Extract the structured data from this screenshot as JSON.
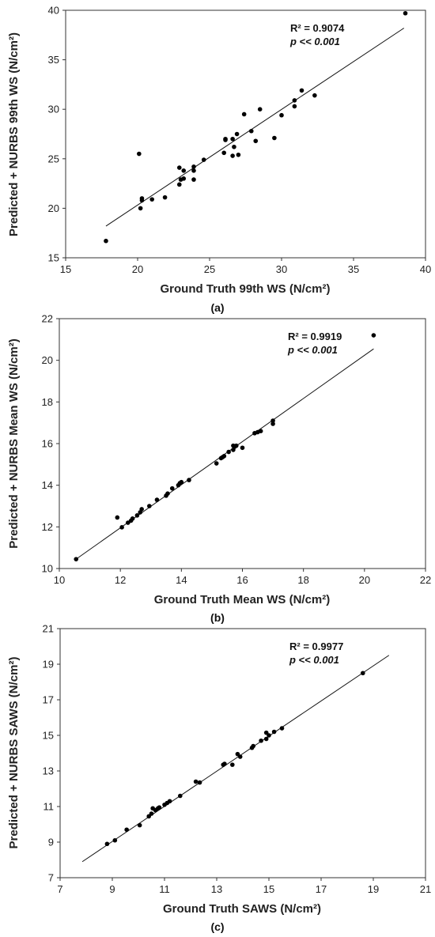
{
  "chart_data": [
    {
      "type": "scatter",
      "caption": "(a)",
      "xlabel": "Ground Truth 99th WS (N/cm²)",
      "ylabel": "Predicted + NURBS 99th WS (N/cm²)",
      "xlim": [
        15,
        40
      ],
      "ylim": [
        15,
        40
      ],
      "xticks": [
        15,
        20,
        25,
        30,
        35,
        40
      ],
      "yticks": [
        15,
        20,
        25,
        30,
        35,
        40
      ],
      "grid": false,
      "annotation": {
        "r2": "R² = 0.9074",
        "p": "p << 0.001"
      },
      "fit_line": {
        "x": [
          17.8,
          38.5
        ],
        "y": [
          18.2,
          38.2
        ]
      },
      "points": [
        [
          17.8,
          16.7
        ],
        [
          20.1,
          25.5
        ],
        [
          20.2,
          20.0
        ],
        [
          20.3,
          20.8
        ],
        [
          20.3,
          21.0
        ],
        [
          21.0,
          20.9
        ],
        [
          21.9,
          21.1
        ],
        [
          22.9,
          24.1
        ],
        [
          22.9,
          22.4
        ],
        [
          23.0,
          22.9
        ],
        [
          23.2,
          23.8
        ],
        [
          23.2,
          23.0
        ],
        [
          23.9,
          24.2
        ],
        [
          23.9,
          23.8
        ],
        [
          23.9,
          22.9
        ],
        [
          24.6,
          24.9
        ],
        [
          26.0,
          25.6
        ],
        [
          26.1,
          26.9
        ],
        [
          26.1,
          27.0
        ],
        [
          26.6,
          27.0
        ],
        [
          26.6,
          25.3
        ],
        [
          26.7,
          26.2
        ],
        [
          26.9,
          27.5
        ],
        [
          27.0,
          25.4
        ],
        [
          27.4,
          29.5
        ],
        [
          27.9,
          27.8
        ],
        [
          28.2,
          26.8
        ],
        [
          28.5,
          30.0
        ],
        [
          29.5,
          27.1
        ],
        [
          30.0,
          29.4
        ],
        [
          30.9,
          30.9
        ],
        [
          30.9,
          30.3
        ],
        [
          31.4,
          31.9
        ],
        [
          32.3,
          31.4
        ],
        [
          38.6,
          39.7
        ]
      ]
    },
    {
      "type": "scatter",
      "caption": "(b)",
      "xlabel": "Ground Truth Mean WS (N/cm²)",
      "ylabel": "Predicted + NURBS Mean WS (N/cm²)",
      "xlim": [
        10,
        22
      ],
      "ylim": [
        10,
        22
      ],
      "xticks": [
        10,
        12,
        14,
        16,
        18,
        20,
        22
      ],
      "yticks": [
        10,
        12,
        14,
        16,
        18,
        20,
        22
      ],
      "grid": false,
      "annotation": {
        "r2": "R² = 0.9919",
        "p": "p << 0.001"
      },
      "fit_line": {
        "x": [
          10.55,
          20.3
        ],
        "y": [
          10.45,
          20.55
        ]
      },
      "points": [
        [
          10.55,
          10.45
        ],
        [
          11.9,
          12.45
        ],
        [
          12.05,
          11.98
        ],
        [
          12.25,
          12.2
        ],
        [
          12.35,
          12.3
        ],
        [
          12.4,
          12.4
        ],
        [
          12.55,
          12.55
        ],
        [
          12.65,
          12.7
        ],
        [
          12.7,
          12.85
        ],
        [
          12.95,
          13.0
        ],
        [
          13.2,
          13.3
        ],
        [
          13.5,
          13.5
        ],
        [
          13.55,
          13.6
        ],
        [
          13.7,
          13.85
        ],
        [
          13.9,
          14.0
        ],
        [
          13.95,
          14.1
        ],
        [
          14.0,
          14.15
        ],
        [
          14.25,
          14.25
        ],
        [
          15.15,
          15.05
        ],
        [
          15.3,
          15.3
        ],
        [
          15.35,
          15.35
        ],
        [
          15.4,
          15.4
        ],
        [
          15.55,
          15.6
        ],
        [
          15.7,
          15.7
        ],
        [
          15.7,
          15.9
        ],
        [
          15.75,
          15.85
        ],
        [
          15.8,
          15.9
        ],
        [
          16.0,
          15.8
        ],
        [
          16.4,
          16.5
        ],
        [
          16.5,
          16.55
        ],
        [
          16.6,
          16.6
        ],
        [
          17.0,
          16.95
        ],
        [
          17.0,
          17.1
        ],
        [
          20.3,
          21.2
        ]
      ]
    },
    {
      "type": "scatter",
      "caption": "(c)",
      "xlabel": "Ground Truth SAWS (N/cm²)",
      "ylabel": "Predicted + NURBS SAWS (N/cm²)",
      "xlim": [
        7,
        21
      ],
      "ylim": [
        7,
        21
      ],
      "xticks": [
        7,
        9,
        11,
        13,
        15,
        17,
        19,
        21
      ],
      "yticks": [
        7,
        9,
        11,
        13,
        15,
        17,
        19,
        21
      ],
      "grid": false,
      "annotation": {
        "r2": "R² = 0.9977",
        "p": "p << 0.001"
      },
      "fit_line": {
        "x": [
          7.85,
          19.6
        ],
        "y": [
          7.9,
          19.5
        ]
      },
      "points": [
        [
          8.8,
          8.9
        ],
        [
          9.1,
          9.1
        ],
        [
          9.55,
          9.7
        ],
        [
          10.05,
          9.95
        ],
        [
          10.4,
          10.45
        ],
        [
          10.5,
          10.6
        ],
        [
          10.55,
          10.9
        ],
        [
          10.65,
          10.8
        ],
        [
          10.75,
          10.9
        ],
        [
          10.8,
          10.95
        ],
        [
          11.0,
          11.1
        ],
        [
          11.1,
          11.2
        ],
        [
          11.2,
          11.3
        ],
        [
          11.6,
          11.6
        ],
        [
          12.2,
          12.4
        ],
        [
          12.35,
          12.35
        ],
        [
          13.25,
          13.35
        ],
        [
          13.3,
          13.4
        ],
        [
          13.6,
          13.35
        ],
        [
          13.8,
          13.95
        ],
        [
          13.9,
          13.8
        ],
        [
          14.35,
          14.3
        ],
        [
          14.4,
          14.4
        ],
        [
          14.7,
          14.7
        ],
        [
          14.9,
          14.8
        ],
        [
          14.9,
          15.15
        ],
        [
          15.0,
          15.0
        ],
        [
          15.2,
          15.2
        ],
        [
          15.5,
          15.4
        ],
        [
          18.6,
          18.5
        ]
      ]
    }
  ]
}
